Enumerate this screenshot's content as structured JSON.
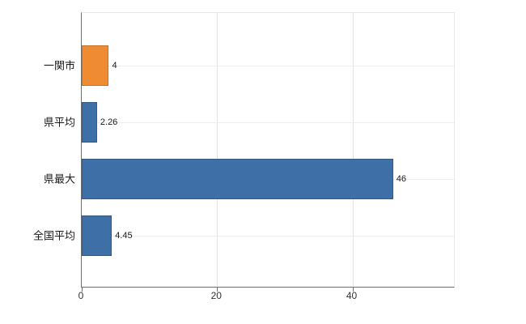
{
  "chart_data": {
    "type": "bar",
    "orientation": "horizontal",
    "title": "",
    "xlabel": "",
    "ylabel": "",
    "categories": [
      "一関市",
      "県平均",
      "県最大",
      "全国平均"
    ],
    "values": [
      4,
      2.26,
      46,
      4.45
    ],
    "value_labels": [
      "4",
      "2.26",
      "46",
      "4.45"
    ],
    "colors": [
      "#ef8b33",
      "#3e6fa7",
      "#3e6fa7",
      "#3e6fa7"
    ],
    "xlim": [
      0,
      55
    ],
    "xticks": [
      0,
      20,
      40
    ],
    "grid": true,
    "legend": "none",
    "background_color": "#ffffff",
    "axis_color": "#6e6e6e",
    "gridline_color": "#e3e3e3"
  }
}
